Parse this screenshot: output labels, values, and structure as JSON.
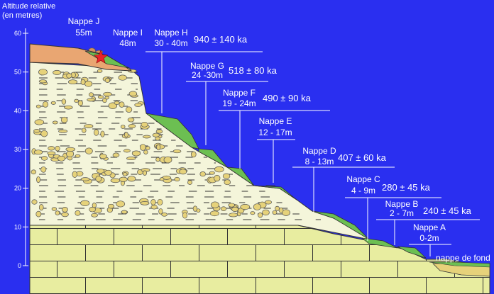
{
  "axis": {
    "title_line1": "Altitude relative",
    "title_line2": "(en metres)",
    "ticks": [
      "60",
      "50",
      "40",
      "30",
      "20",
      "10",
      "0"
    ]
  },
  "terraces": [
    {
      "name": "Nappe J",
      "height": "55m",
      "date": ""
    },
    {
      "name": "Nappe I",
      "height": "48m",
      "date": ""
    },
    {
      "name": "Nappe H",
      "height": "30 - 40m",
      "date": "940 ± 140 ka"
    },
    {
      "name": "Nappe G",
      "height": "24 -30m",
      "date": "518 ± 80 ka"
    },
    {
      "name": "Nappe F",
      "height": "19 - 24m",
      "date": "490 ± 90 ka"
    },
    {
      "name": "Nappe E",
      "height": "12 - 17m",
      "date": ""
    },
    {
      "name": "Nappe D",
      "height": "8 - 13m",
      "date": "407 ± 60 ka"
    },
    {
      "name": "Nappe C",
      "height": "4 - 9m",
      "date": "280 ± 45 ka"
    },
    {
      "name": "Nappe B",
      "height": "2 - 7m",
      "date": "240 ± 45 ka"
    },
    {
      "name": "Nappe A",
      "height": "0-2m",
      "date": ""
    }
  ],
  "bottom_label": "nappe de fond",
  "colors": {
    "background": "#2a2ff0",
    "bedrock": "#e8eda0",
    "alluvium": "#f4f5da",
    "pebbles": "#e6d27a",
    "terrace_green": "#6cbf52",
    "orange_layer": "#e9a672",
    "star": "#e8232a"
  }
}
